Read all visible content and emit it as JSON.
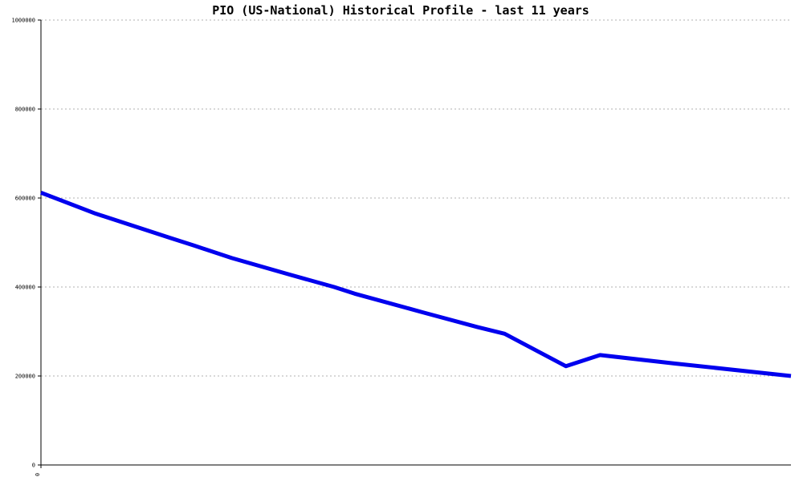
{
  "chart_data": {
    "type": "line",
    "title": "PIO (US-National) Historical Profile - last 11 years",
    "xlabel": "",
    "ylabel": "",
    "ylim": [
      0,
      1000000
    ],
    "yticks": [
      "0",
      "200000",
      "400000",
      "600000",
      "800000",
      "1000000"
    ],
    "ytick_values": [
      0,
      200000,
      400000,
      600000,
      800000,
      1000000
    ],
    "xtick_labels": [
      "0"
    ],
    "xlim": [
      0,
      11
    ],
    "grid": true,
    "line_color": "#0000ee",
    "series": [
      {
        "x": [
          0,
          0.8,
          1.9,
          2.25,
          2.8,
          3.6,
          4.3,
          4.6,
          5.6,
          6.4,
          6.8,
          7.7,
          8.2,
          9.3,
          11
        ],
        "values": [
          612000,
          565000,
          510000,
          493000,
          465000,
          430000,
          400000,
          385000,
          343000,
          310000,
          295000,
          222000,
          247000,
          228000,
          200000
        ]
      }
    ]
  }
}
